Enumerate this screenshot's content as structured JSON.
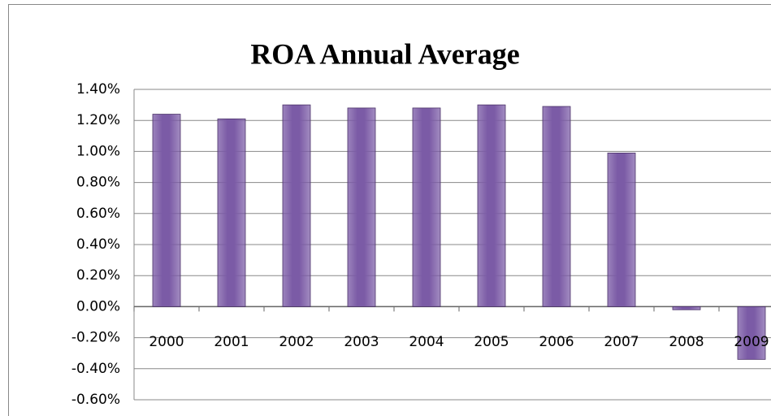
{
  "chart_data": {
    "type": "bar",
    "title": "ROA Annual Average",
    "categories": [
      "2000",
      "2001",
      "2002",
      "2003",
      "2004",
      "2005",
      "2006",
      "2007",
      "2008",
      "2009"
    ],
    "values": [
      1.24,
      1.21,
      1.3,
      1.28,
      1.28,
      1.3,
      1.29,
      0.99,
      -0.02,
      -0.34
    ],
    "color": "#7b5ba6",
    "ylim": [
      -0.6,
      1.4
    ],
    "yticks": [
      {
        "value": 1.4,
        "label": "1.40%"
      },
      {
        "value": 1.2,
        "label": "1.20%"
      },
      {
        "value": 1.0,
        "label": "1.00%"
      },
      {
        "value": 0.8,
        "label": "0.80%"
      },
      {
        "value": 0.6,
        "label": "0.60%"
      },
      {
        "value": 0.4,
        "label": "0.40%"
      },
      {
        "value": 0.2,
        "label": "0.20%"
      },
      {
        "value": 0,
        "label": "0.00%"
      },
      {
        "value": -0.2,
        "label": "-0.20%"
      },
      {
        "value": -0.4,
        "label": "-0.40%"
      },
      {
        "value": -0.6,
        "label": "-0.60%"
      }
    ],
    "grid": true
  }
}
